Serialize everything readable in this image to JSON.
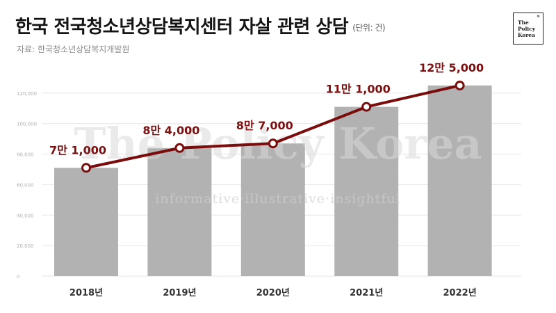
{
  "header": {
    "title": "한국 전국청소년상담복지센터 자살 관련 상담",
    "unit": "(단위: 건)",
    "source": "자료: 한국청소년상담복지개발원"
  },
  "logo": {
    "line1": "The",
    "line2": "Policy",
    "line3": "Korea",
    "mark": "®"
  },
  "watermark": {
    "main": "The Policy Korea",
    "tagline": "informative·illustrative·insightful"
  },
  "colors": {
    "bar": "#b2b2b2",
    "line": "#7a0c0c",
    "label": "#7a1010",
    "grid": "#e6e6e6"
  },
  "chart_data": {
    "type": "bar",
    "categories": [
      "2018년",
      "2019년",
      "2020년",
      "2021년",
      "2022년"
    ],
    "values": [
      71000,
      84000,
      87000,
      111000,
      125000
    ],
    "data_labels": [
      "7만 1,000",
      "8만 4,000",
      "8만 7,000",
      "11만 1,000",
      "12만 5,000"
    ],
    "overlay_line": true,
    "ylim": [
      0,
      140000
    ],
    "yticks": [
      0,
      20000,
      40000,
      60000,
      80000,
      100000,
      120000
    ],
    "ytick_labels": [
      "0",
      "20,000",
      "40,000",
      "60,000",
      "80,000",
      "100,000",
      "120,000"
    ],
    "grid": true,
    "legend": "none"
  }
}
